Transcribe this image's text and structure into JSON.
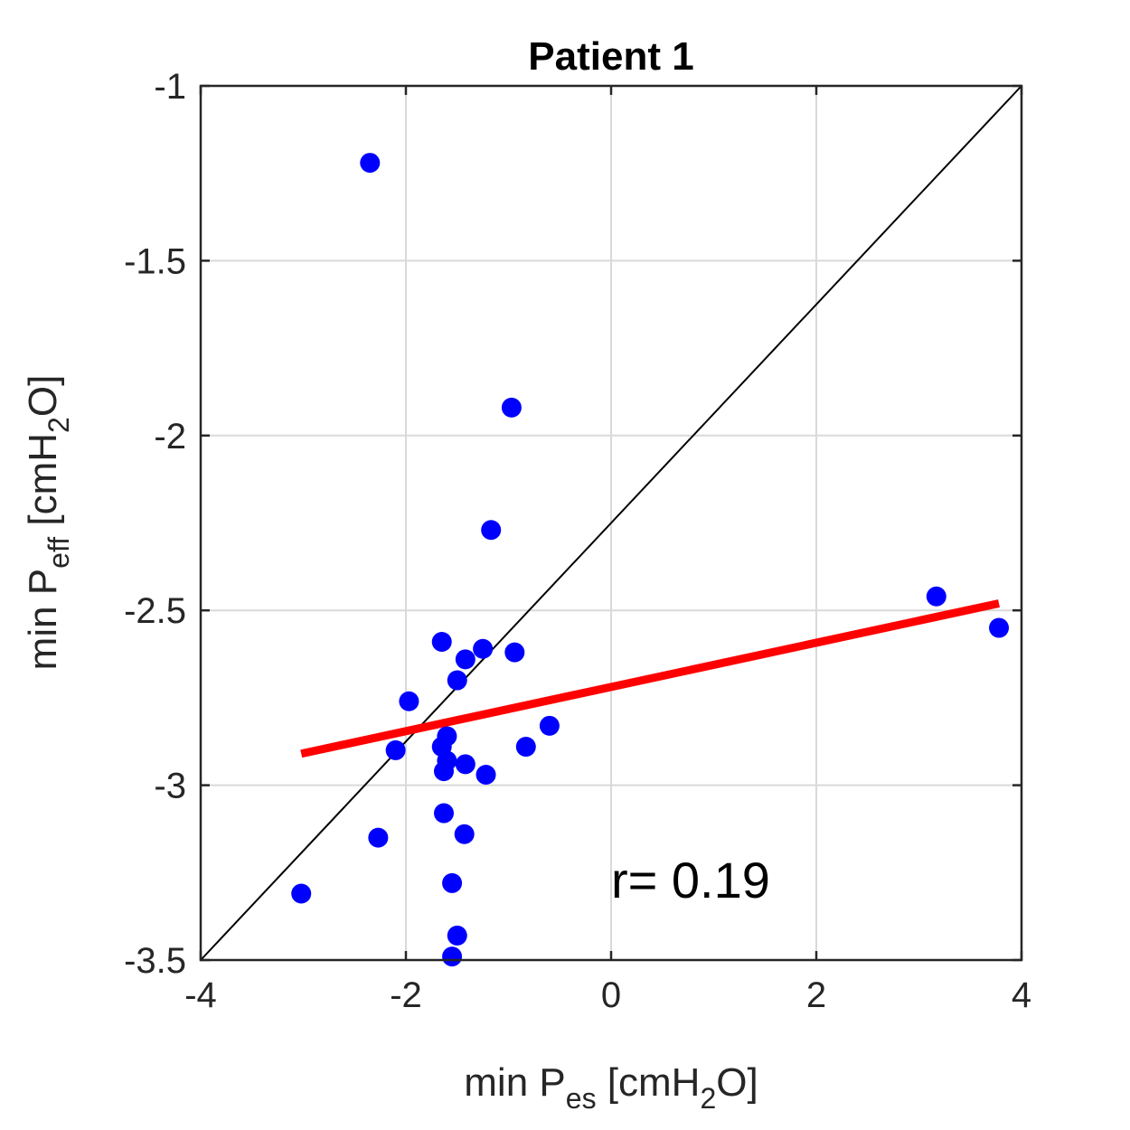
{
  "chart_data": {
    "type": "scatter",
    "title": "Patient 1",
    "xlabel": {
      "prefix": "min P",
      "sub": "es",
      "suffix1": " [cmH",
      "sub2": "2",
      "suffix2": "O]"
    },
    "ylabel": {
      "prefix": "min P",
      "sub": "eff",
      "suffix1": " [cmH",
      "sub2": "2",
      "suffix2": "O]"
    },
    "xlim": [
      -4,
      4
    ],
    "ylim": [
      -3.5,
      -1
    ],
    "xticks": [
      -4,
      -2,
      0,
      2,
      4
    ],
    "xtick_labels": [
      "-4",
      "-2",
      "0",
      "2",
      "4"
    ],
    "yticks": [
      -3.5,
      -3,
      -2.5,
      -2,
      -1.5,
      -1
    ],
    "ytick_labels": [
      "-3.5",
      "-3",
      "-2.5",
      "-2",
      "-1.5",
      "-1"
    ],
    "grid": true,
    "colors": {
      "points": "#0000ff",
      "fit": "#ff0000",
      "identity": "#000000"
    },
    "points": [
      {
        "x": -2.35,
        "y": -1.22
      },
      {
        "x": -0.97,
        "y": -1.92
      },
      {
        "x": -1.17,
        "y": -2.27
      },
      {
        "x": -1.65,
        "y": -2.59
      },
      {
        "x": -1.42,
        "y": -2.64
      },
      {
        "x": -1.25,
        "y": -2.61
      },
      {
        "x": -0.94,
        "y": -2.62
      },
      {
        "x": -1.5,
        "y": -2.7
      },
      {
        "x": -1.97,
        "y": -2.76
      },
      {
        "x": -0.6,
        "y": -2.83
      },
      {
        "x": -1.6,
        "y": -2.86
      },
      {
        "x": -1.65,
        "y": -2.89
      },
      {
        "x": -2.1,
        "y": -2.9
      },
      {
        "x": -0.83,
        "y": -2.89
      },
      {
        "x": -1.6,
        "y": -2.93
      },
      {
        "x": -1.42,
        "y": -2.94
      },
      {
        "x": -1.63,
        "y": -2.96
      },
      {
        "x": -1.22,
        "y": -2.97
      },
      {
        "x": -1.63,
        "y": -3.08
      },
      {
        "x": -1.43,
        "y": -3.14
      },
      {
        "x": -2.27,
        "y": -3.15
      },
      {
        "x": -1.55,
        "y": -3.28
      },
      {
        "x": -3.02,
        "y": -3.31
      },
      {
        "x": -1.5,
        "y": -3.43
      },
      {
        "x": -1.55,
        "y": -3.49
      },
      {
        "x": 3.17,
        "y": -2.46
      },
      {
        "x": 3.78,
        "y": -2.55
      }
    ],
    "fit_line": {
      "x": [
        -3.02,
        3.78
      ],
      "y": [
        -2.91,
        -2.48
      ]
    },
    "identity_line": {
      "x": [
        -4,
        4
      ],
      "y": [
        -3.5,
        -1
      ]
    },
    "annotation": {
      "text": "r= 0.19",
      "x": 0,
      "y": -3.27
    }
  }
}
